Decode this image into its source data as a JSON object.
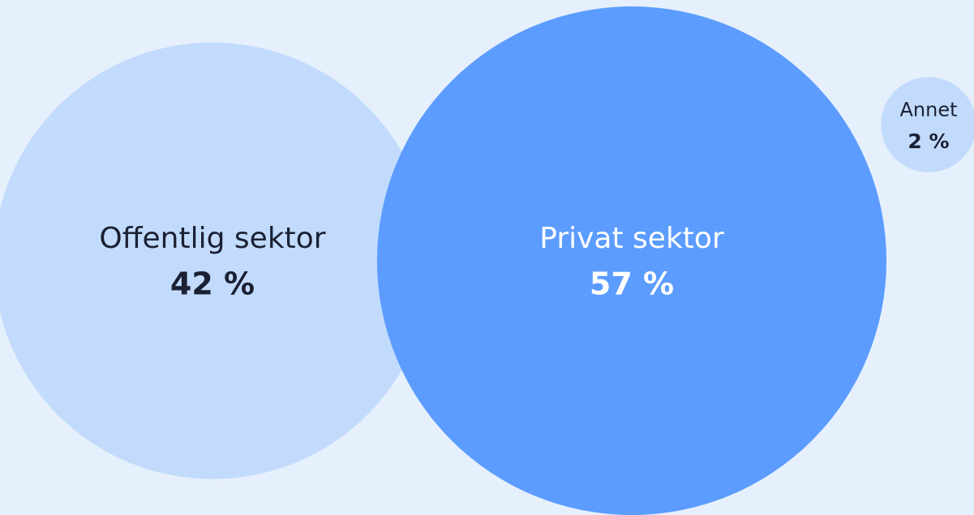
{
  "chart_data": {
    "type": "bubble",
    "categories": [
      "Offentlig sektor",
      "Privat sektor",
      "Annet"
    ],
    "values": [
      42,
      57,
      2
    ],
    "value_labels": [
      "42 %",
      "57 %",
      "2 %"
    ],
    "colors": [
      "#c2dbfc",
      "#5c9cff",
      "#c2dbfc"
    ]
  }
}
